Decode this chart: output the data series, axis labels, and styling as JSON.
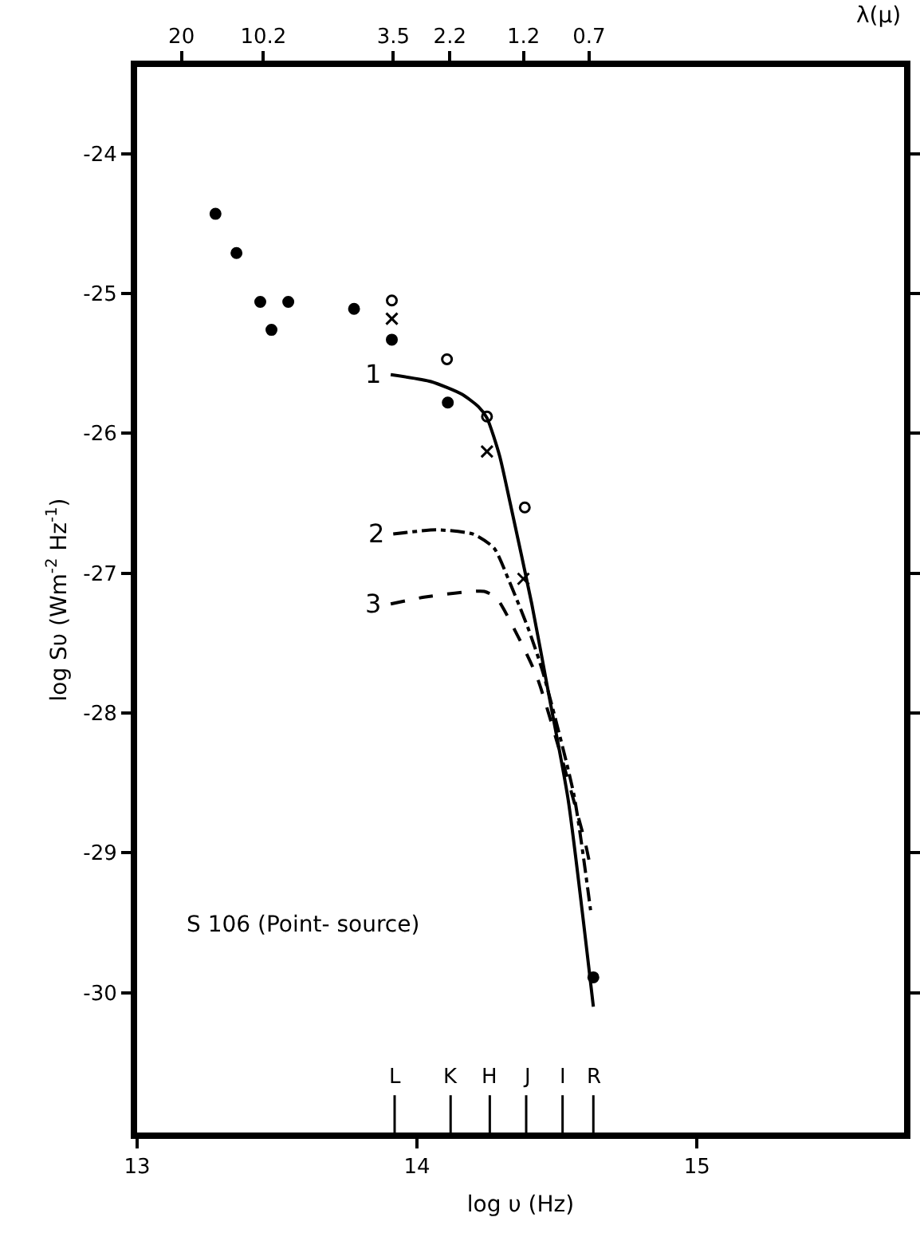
{
  "chart_data": {
    "type": "scatter",
    "xlabel": "log υ (Hz)",
    "ylabel": "log Sυ (Wm$^{-2}$ Hz$^{-1}$)",
    "x2label": "λ(μ)",
    "xlim": [
      13,
      15.74
    ],
    "xticks": [
      13,
      14,
      15
    ],
    "x2lim": [
      28.8,
      0.0525
    ],
    "x2ticks": [
      20,
      10.2,
      3.5,
      2.2,
      1.2,
      0.7
    ],
    "log": "x2",
    "ylim": [
      -31,
      -23.38
    ],
    "yticks": [
      -24,
      -25,
      -26,
      -27,
      -28,
      -29,
      -30
    ],
    "grid": false,
    "annotations": [
      "S 106 (Point- source)"
    ],
    "ref_lines": [
      {
        "axis": "x",
        "value": 13.92,
        "label": "L"
      },
      {
        "axis": "x",
        "value": 14.12,
        "label": "K"
      },
      {
        "axis": "x",
        "value": 14.26,
        "label": "H"
      },
      {
        "axis": "x",
        "value": 14.39,
        "label": "J"
      },
      {
        "axis": "x",
        "value": 14.52,
        "label": "I"
      },
      {
        "axis": "x",
        "value": 14.63,
        "label": "R"
      }
    ],
    "series": [
      {
        "marker": "circle",
        "color": "#000000",
        "x": [
          13.28,
          13.355,
          13.44,
          13.48,
          13.54,
          13.775,
          13.91,
          14.11,
          14.63
        ],
        "values": [
          -24.43,
          -24.71,
          -25.06,
          -25.26,
          -25.06,
          -25.11,
          -25.33,
          -25.78,
          -29.89
        ]
      },
      {
        "marker": "circle",
        "color": "#ffffff",
        "x": [
          13.91,
          14.107,
          14.25,
          14.385
        ],
        "values": [
          -25.05,
          -25.47,
          -25.88,
          -26.53
        ]
      },
      {
        "marker": "cross",
        "color": "#000000",
        "x": [
          13.91,
          14.25,
          14.38
        ],
        "values": [
          -25.18,
          -26.13,
          -27.04
        ]
      },
      {
        "type": "line",
        "name": "1",
        "color": "#000000",
        "line_style": "solid",
        "x": [
          13.906,
          14.05,
          14.16,
          14.22,
          14.25,
          14.295,
          14.333,
          14.41,
          14.47,
          14.54,
          14.63
        ],
        "values": [
          -25.58,
          -25.63,
          -25.72,
          -25.81,
          -25.89,
          -26.16,
          -26.5,
          -27.22,
          -27.86,
          -28.62,
          -30.1
        ]
      },
      {
        "type": "line",
        "name": "2",
        "color": "#000000",
        "line_style": "dashdot",
        "x": [
          13.915,
          14.07,
          14.2,
          14.275,
          14.33,
          14.4,
          14.45,
          14.56,
          14.62
        ],
        "values": [
          -26.72,
          -26.69,
          -26.72,
          -26.82,
          -27.06,
          -27.41,
          -27.71,
          -28.58,
          -29.41
        ]
      },
      {
        "type": "line",
        "name": "3",
        "color": "#000000",
        "line_style": "dashed",
        "x": [
          13.906,
          14.03,
          14.24,
          14.285,
          14.35,
          14.43,
          14.6,
          14.62
        ],
        "values": [
          -27.22,
          -27.17,
          -27.13,
          -27.18,
          -27.41,
          -27.75,
          -28.92,
          -29.11
        ]
      }
    ]
  }
}
